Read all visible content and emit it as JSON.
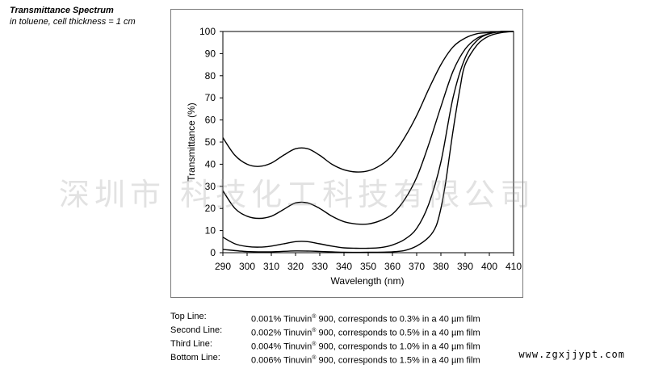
{
  "header": {
    "title": "Transmittance Spectrum",
    "subtitle": "in toluene, cell thickness = 1 cm"
  },
  "chart_data": {
    "type": "line",
    "xlabel": "Wavelength (nm)",
    "ylabel": "Transmittance (%)",
    "xlim": [
      290,
      410
    ],
    "ylim": [
      0,
      100
    ],
    "xticks": [
      290,
      300,
      310,
      320,
      330,
      340,
      350,
      360,
      370,
      380,
      390,
      400,
      410
    ],
    "yticks": [
      0,
      10,
      20,
      30,
      40,
      50,
      60,
      70,
      80,
      90,
      100
    ],
    "grid": false,
    "series": [
      {
        "color": "#000000",
        "x": [
          290,
          295,
          300,
          305,
          310,
          315,
          320,
          325,
          330,
          335,
          340,
          345,
          350,
          355,
          360,
          365,
          370,
          375,
          380,
          385,
          390,
          395,
          400,
          405,
          410
        ],
        "y": [
          52,
          44,
          40,
          39,
          40.5,
          44,
          47,
          47,
          44,
          40,
          37.5,
          36.5,
          37,
          39.5,
          44,
          52,
          62,
          74,
          85,
          93,
          97,
          99,
          99.5,
          100,
          100
        ]
      },
      {
        "color": "#000000",
        "x": [
          290,
          295,
          300,
          305,
          310,
          315,
          320,
          325,
          330,
          335,
          340,
          345,
          350,
          355,
          360,
          365,
          370,
          375,
          380,
          385,
          390,
          395,
          400,
          405,
          410
        ],
        "y": [
          28,
          20,
          16.5,
          15.5,
          16.5,
          19.5,
          22.5,
          22.5,
          20,
          16.5,
          14,
          13,
          13,
          14.5,
          17.5,
          24,
          34,
          49,
          66,
          82,
          92,
          97,
          99,
          100,
          100
        ]
      },
      {
        "color": "#000000",
        "x": [
          290,
          295,
          300,
          305,
          310,
          315,
          320,
          325,
          330,
          335,
          340,
          345,
          350,
          355,
          360,
          365,
          370,
          375,
          380,
          385,
          390,
          395,
          400,
          405,
          410
        ],
        "y": [
          7,
          4,
          2.8,
          2.5,
          3,
          4,
          5,
          5,
          4,
          3,
          2.2,
          2,
          2,
          2.3,
          3.5,
          6,
          11,
          22,
          41,
          70,
          88,
          96,
          99,
          100,
          100
        ]
      },
      {
        "color": "#000000",
        "x": [
          290,
          300,
          310,
          320,
          330,
          340,
          350,
          360,
          365,
          370,
          375,
          378,
          380,
          382,
          385,
          388,
          390,
          395,
          400,
          405,
          410
        ],
        "y": [
          1.5,
          0.5,
          0.4,
          0.8,
          0.6,
          0.2,
          0.2,
          0.4,
          1,
          3,
          7,
          12,
          20,
          32,
          55,
          75,
          85,
          94,
          98,
          99.5,
          100
        ]
      }
    ]
  },
  "legend": [
    {
      "key": "Top Line:",
      "pre": "0.001% Tinuvin",
      "sup": "®",
      "post": " 900, corresponds to 0.3% in a 40 µm film"
    },
    {
      "key": "Second Line:",
      "pre": "0.002% Tinuvin",
      "sup": "®",
      "post": " 900, corresponds to 0.5% in a 40 µm film"
    },
    {
      "key": "Third Line:",
      "pre": "0.004% Tinuvin",
      "sup": "®",
      "post": " 900, corresponds to 1.0% in a 40 µm film"
    },
    {
      "key": "Bottom Line:",
      "pre": "0.006% Tinuvin",
      "sup": "®",
      "post": " 900, corresponds to 1.5% in a 40 µm film"
    }
  ],
  "watermark": "深圳市 科技化工科技有限公司",
  "site": "www.zgxjjypt.com"
}
